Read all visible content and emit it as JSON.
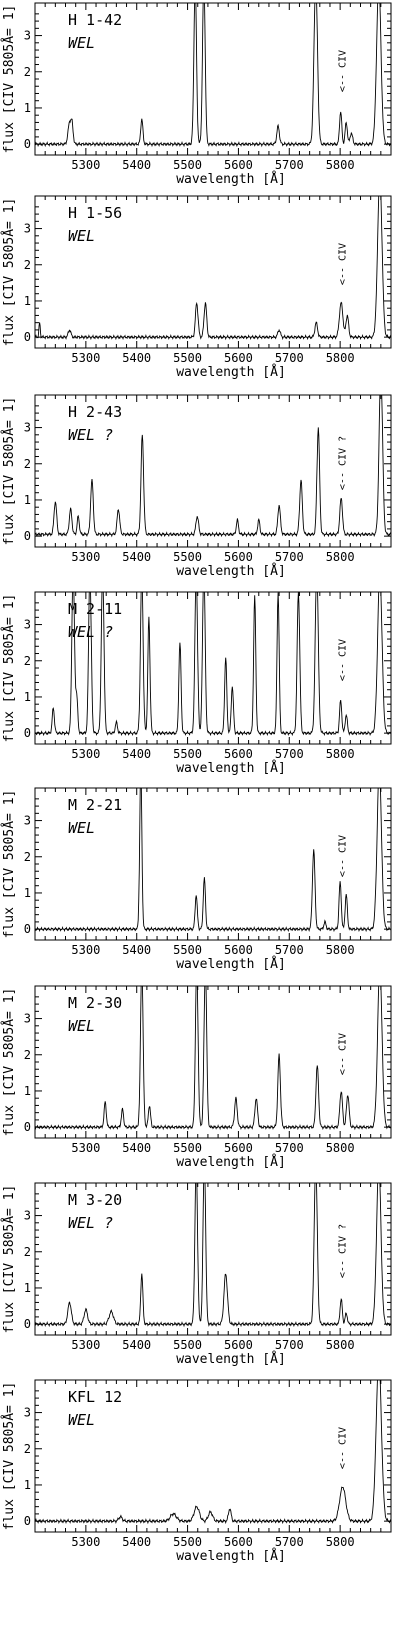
{
  "figure": {
    "ylabel": "flux  [CIV 5805Å= 1]",
    "xlabel": "wavelength  [Å]"
  },
  "chart_data": [
    {
      "type": "line",
      "title": "H 1-42",
      "subtitle": "WEL",
      "annotation": "<-- CIV",
      "annotation_x": 5805,
      "xlim": [
        5200,
        5900
      ],
      "ylim": [
        -0.3,
        3.9
      ],
      "xticks": [
        5300,
        5400,
        5500,
        5600,
        5700,
        5800
      ],
      "yticks": [
        0,
        1,
        2,
        3
      ],
      "baseline": 0.0,
      "lines": [
        [
          5268,
          0.6,
          7
        ],
        [
          5273,
          0.5,
          5
        ],
        [
          5410,
          0.7,
          5
        ],
        [
          5515,
          4.5,
          6
        ],
        [
          5532,
          4.5,
          6
        ],
        [
          5678,
          0.5,
          6
        ],
        [
          5752,
          4.5,
          8
        ],
        [
          5801,
          0.9,
          5
        ],
        [
          5812,
          0.6,
          5
        ],
        [
          5822,
          0.3,
          6
        ],
        [
          5876,
          4.5,
          10
        ]
      ]
    },
    {
      "type": "line",
      "title": "H 1-56",
      "subtitle": "WEL",
      "annotation": "<-- CIV",
      "annotation_x": 5805,
      "xlim": [
        5200,
        5900
      ],
      "ylim": [
        -0.3,
        3.9
      ],
      "xticks": [
        5300,
        5400,
        5500,
        5600,
        5700,
        5800
      ],
      "yticks": [
        0,
        1,
        2,
        3
      ],
      "baseline": 0.0,
      "lines": [
        [
          5209,
          0.4,
          3
        ],
        [
          5268,
          0.2,
          6
        ],
        [
          5518,
          0.95,
          6
        ],
        [
          5535,
          0.95,
          6
        ],
        [
          5680,
          0.2,
          6
        ],
        [
          5753,
          0.4,
          6
        ],
        [
          5802,
          0.95,
          8
        ],
        [
          5814,
          0.6,
          6
        ],
        [
          5878,
          4.5,
          10
        ]
      ]
    },
    {
      "type": "line",
      "title": "H 2-43",
      "subtitle": "WEL ?",
      "annotation": "<-- CIV ?",
      "annotation_x": 5805,
      "xlim": [
        5200,
        5900
      ],
      "ylim": [
        -0.3,
        3.9
      ],
      "xticks": [
        5300,
        5400,
        5500,
        5600,
        5700,
        5800
      ],
      "yticks": [
        0,
        1,
        2,
        3
      ],
      "baseline": 0.05,
      "lines": [
        [
          5240,
          0.9,
          6
        ],
        [
          5270,
          0.7,
          6
        ],
        [
          5285,
          0.5,
          5
        ],
        [
          5312,
          1.5,
          6
        ],
        [
          5364,
          0.7,
          6
        ],
        [
          5411,
          2.75,
          6
        ],
        [
          5519,
          0.5,
          6
        ],
        [
          5598,
          0.4,
          5
        ],
        [
          5640,
          0.4,
          5
        ],
        [
          5680,
          0.8,
          6
        ],
        [
          5723,
          1.5,
          6
        ],
        [
          5757,
          2.95,
          6
        ],
        [
          5802,
          1.0,
          6
        ],
        [
          5880,
          4.5,
          8
        ]
      ]
    },
    {
      "type": "line",
      "title": "M 2-11",
      "subtitle": "WEL ?",
      "annotation": "<-- CIV",
      "annotation_x": 5805,
      "xlim": [
        5200,
        5900
      ],
      "ylim": [
        -0.3,
        3.9
      ],
      "xticks": [
        5300,
        5400,
        5500,
        5600,
        5700,
        5800
      ],
      "yticks": [
        0,
        1,
        2,
        3
      ],
      "baseline": 0.0,
      "lines": [
        [
          5236,
          0.7,
          5
        ],
        [
          5275,
          4.5,
          6
        ],
        [
          5282,
          1.0,
          5
        ],
        [
          5308,
          4.5,
          6
        ],
        [
          5333,
          4.5,
          6
        ],
        [
          5360,
          0.3,
          5
        ],
        [
          5410,
          4.5,
          6
        ],
        [
          5424,
          3.2,
          5
        ],
        [
          5485,
          2.5,
          5
        ],
        [
          5517,
          4.5,
          6
        ],
        [
          5532,
          4.5,
          6
        ],
        [
          5575,
          2.1,
          5
        ],
        [
          5588,
          1.3,
          5
        ],
        [
          5632,
          3.8,
          5
        ],
        [
          5678,
          3.9,
          5
        ],
        [
          5718,
          3.9,
          6
        ],
        [
          5754,
          4.5,
          7
        ],
        [
          5801,
          0.9,
          5
        ],
        [
          5812,
          0.5,
          5
        ],
        [
          5878,
          4.5,
          10
        ]
      ]
    },
    {
      "type": "line",
      "title": "M 2-21",
      "subtitle": "WEL",
      "annotation": "<-- CIV",
      "annotation_x": 5805,
      "xlim": [
        5200,
        5900
      ],
      "ylim": [
        -0.3,
        3.9
      ],
      "xticks": [
        5300,
        5400,
        5500,
        5600,
        5700,
        5800
      ],
      "yticks": [
        0,
        1,
        2,
        3
      ],
      "baseline": 0.0,
      "lines": [
        [
          5408,
          4.5,
          5
        ],
        [
          5517,
          0.95,
          5
        ],
        [
          5533,
          1.4,
          5
        ],
        [
          5748,
          2.2,
          6
        ],
        [
          5770,
          0.2,
          5
        ],
        [
          5800,
          1.3,
          5
        ],
        [
          5812,
          0.95,
          5
        ],
        [
          5877,
          4.5,
          10
        ]
      ]
    },
    {
      "type": "line",
      "title": "M 2-30",
      "subtitle": "WEL",
      "annotation": "<-- CIV",
      "annotation_x": 5805,
      "xlim": [
        5200,
        5900
      ],
      "ylim": [
        -0.3,
        3.9
      ],
      "xticks": [
        5300,
        5400,
        5500,
        5600,
        5700,
        5800
      ],
      "yticks": [
        0,
        1,
        2,
        3
      ],
      "baseline": 0.0,
      "lines": [
        [
          5338,
          0.7,
          5
        ],
        [
          5372,
          0.5,
          5
        ],
        [
          5410,
          4.5,
          6
        ],
        [
          5425,
          0.6,
          5
        ],
        [
          5518,
          4.5,
          6
        ],
        [
          5535,
          4.5,
          6
        ],
        [
          5595,
          0.8,
          6
        ],
        [
          5635,
          0.8,
          6
        ],
        [
          5680,
          2.0,
          6
        ],
        [
          5755,
          1.7,
          6
        ],
        [
          5802,
          1.0,
          6
        ],
        [
          5815,
          0.9,
          6
        ],
        [
          5878,
          4.5,
          10
        ]
      ]
    },
    {
      "type": "line",
      "title": "M 3-20",
      "subtitle": "WEL ?",
      "annotation": "<-- CIV ?",
      "annotation_x": 5805,
      "xlim": [
        5200,
        5900
      ],
      "ylim": [
        -0.3,
        3.9
      ],
      "xticks": [
        5300,
        5400,
        5500,
        5600,
        5700,
        5800
      ],
      "yticks": [
        0,
        1,
        2,
        3
      ],
      "baseline": 0.0,
      "lines": [
        [
          5268,
          0.6,
          8
        ],
        [
          5300,
          0.4,
          8
        ],
        [
          5350,
          0.35,
          10
        ],
        [
          5410,
          1.4,
          5
        ],
        [
          5517,
          4.5,
          6
        ],
        [
          5533,
          4.5,
          6
        ],
        [
          5575,
          1.4,
          8
        ],
        [
          5752,
          4.5,
          7
        ],
        [
          5802,
          0.7,
          5
        ],
        [
          5812,
          0.3,
          5
        ],
        [
          5876,
          4.5,
          10
        ]
      ]
    },
    {
      "type": "line",
      "title": "KFL 12",
      "subtitle": "WEL",
      "annotation": "<-- CIV",
      "annotation_x": 5805,
      "xlim": [
        5200,
        5900
      ],
      "ylim": [
        -0.3,
        3.9
      ],
      "xticks": [
        5300,
        5400,
        5500,
        5600,
        5700,
        5800
      ],
      "yticks": [
        0,
        1,
        2,
        3
      ],
      "baseline": 0.0,
      "lines": [
        [
          5368,
          0.12,
          8
        ],
        [
          5472,
          0.2,
          14
        ],
        [
          5518,
          0.4,
          12
        ],
        [
          5545,
          0.25,
          10
        ],
        [
          5583,
          0.35,
          6
        ],
        [
          5805,
          0.95,
          14
        ],
        [
          5876,
          4.5,
          12
        ]
      ]
    }
  ]
}
